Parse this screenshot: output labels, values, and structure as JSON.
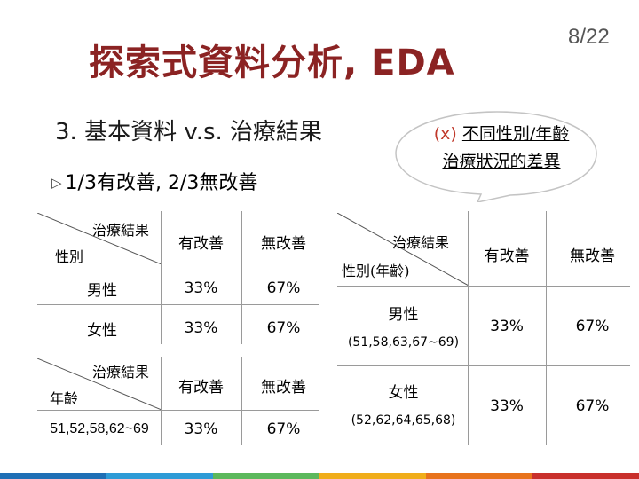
{
  "slide": {
    "title": "探索式資料分析, EDA",
    "page_number": "8/22",
    "subtitle": "3. 基本資料 v.s. 治療結果",
    "bullet": "1/3有改善, 2/3無改善"
  },
  "callout": {
    "marker": "(x)",
    "line1": "不同性別/年齡",
    "line2": "治療狀況的差異"
  },
  "table_gender": {
    "corner_top": "治療結果",
    "corner_bottom": "性別",
    "headers": [
      "有改善",
      "無改善"
    ],
    "rows": [
      {
        "label": "男性",
        "values": [
          "33%",
          "67%"
        ]
      },
      {
        "label": "女性",
        "values": [
          "33%",
          "67%"
        ]
      }
    ]
  },
  "table_age": {
    "corner_top": "治療結果",
    "corner_bottom": "年齡",
    "headers": [
      "有改善",
      "無改善"
    ],
    "rows": [
      {
        "label": "51,52,58,62~69",
        "values": [
          "33%",
          "67%"
        ]
      }
    ]
  },
  "table_combined": {
    "corner_top": "治療結果",
    "corner_bottom": "性別(年齡)",
    "headers": [
      "有改善",
      "無改善"
    ],
    "rows": [
      {
        "label": "男性",
        "sub": "(51,58,63,67~69)",
        "values": [
          "33%",
          "67%"
        ]
      },
      {
        "label": "女性",
        "sub": "(52,62,64,65,68)",
        "values": [
          "33%",
          "67%"
        ]
      }
    ]
  },
  "colors": {
    "title": "#8b2323",
    "callout_marker": "#c0392b",
    "bottom_bar": [
      "#1f6fb5",
      "#2e9bd6",
      "#5cb85c",
      "#f0ad1a",
      "#e8731c",
      "#c9302c"
    ]
  }
}
